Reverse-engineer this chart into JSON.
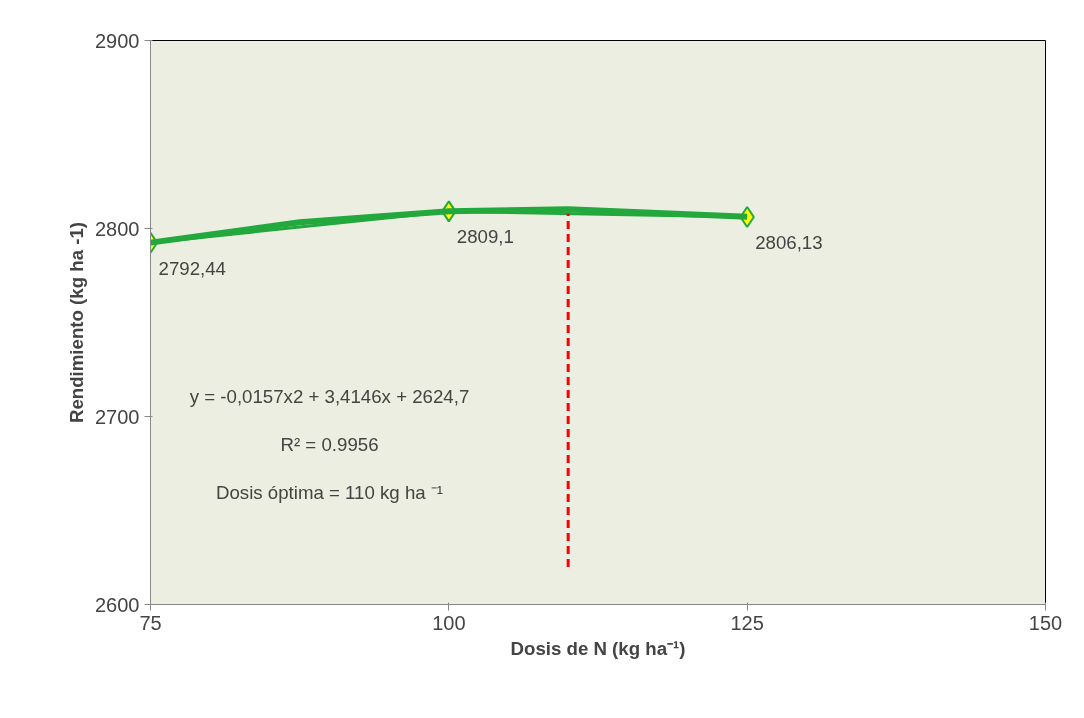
{
  "chart_data": {
    "type": "line",
    "xlabel": "Dosis de N (kg ha⁻¹)",
    "ylabel": "Rendimiento (kg ha -1)",
    "x": [
      75,
      100,
      125
    ],
    "series": [
      {
        "color": "#22a83c",
        "values": [
          2792.44,
          2809.1,
          2806.13
        ],
        "value_labels": [
          "2792,44",
          "2809,1",
          "2806,13"
        ],
        "marker": "diamond"
      },
      {
        "color": "#22a83c",
        "x": [
          75,
          87.5,
          100,
          110,
          125
        ],
        "values": [
          2792.5,
          2803.3,
          2809.2,
          2810.3,
          2806.2
        ],
        "marker": "none"
      },
      {
        "color": "#ff0000",
        "x": [
          110,
          110
        ],
        "values": [
          2620,
          2808
        ],
        "line_style": "dashed",
        "marker": "none"
      }
    ],
    "annotations": [
      "y = -0,0157x2 + 3,4146x + 2624,7",
      "R² = 0.9956",
      "Dosis óptima = 110 kg ha ⁻¹"
    ],
    "xlim": [
      75,
      150
    ],
    "xticks": [
      75,
      100,
      125,
      150
    ],
    "ylim": [
      2600,
      2900
    ],
    "yticks": [
      2600,
      2700,
      2800,
      2900
    ]
  }
}
